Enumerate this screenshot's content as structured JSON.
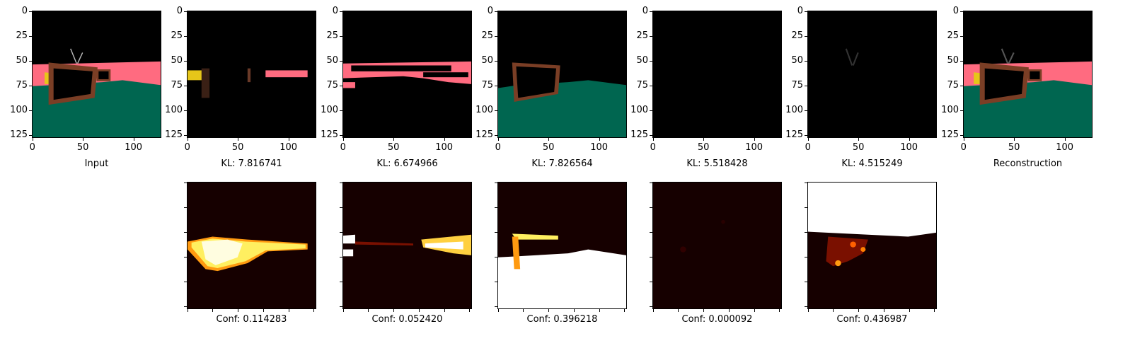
{
  "figure": {
    "top_row": [
      {
        "id": "input",
        "caption": "Input"
      },
      {
        "id": "slot1",
        "caption": "KL: 7.816741"
      },
      {
        "id": "slot2",
        "caption": "KL: 6.674966"
      },
      {
        "id": "slot3",
        "caption": "KL: 7.826564"
      },
      {
        "id": "slot4",
        "caption": "KL: 5.518428"
      },
      {
        "id": "slot5",
        "caption": "KL: 4.515249"
      },
      {
        "id": "recon",
        "caption": "Reconstruction"
      }
    ],
    "bottom_row": [
      {
        "id": "mask1",
        "caption": "Conf: 0.114283"
      },
      {
        "id": "mask2",
        "caption": "Conf: 0.052420"
      },
      {
        "id": "mask3",
        "caption": "Conf: 0.396218"
      },
      {
        "id": "mask4",
        "caption": "Conf: 0.000092"
      },
      {
        "id": "mask5",
        "caption": "Conf: 0.436987"
      }
    ],
    "axis": {
      "y_ticks": [
        "0",
        "25",
        "50",
        "75",
        "100",
        "125"
      ],
      "x_ticks": [
        "0",
        "50",
        "100"
      ]
    },
    "colors": {
      "floor": "#006650",
      "wall": "#ff6b80",
      "tv_frame": "#7a3e25",
      "object": "#e6c619",
      "background": "#000000",
      "heat_dark": "#160000",
      "heat_hot": "#ffffff"
    }
  }
}
